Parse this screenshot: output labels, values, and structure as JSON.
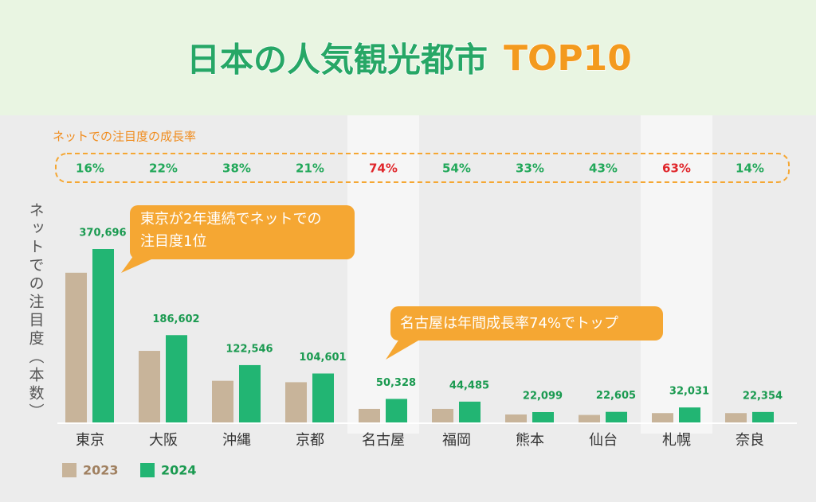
{
  "chart_data": {
    "type": "bar",
    "title": "日本の人気観光都市",
    "title_highlight": "TOP10",
    "y_label": "ネットでの注目度（本数）",
    "categories": [
      "東京",
      "大阪",
      "沖縄",
      "京都",
      "名古屋",
      "福岡",
      "熊本",
      "仙台",
      "札幌",
      "奈良"
    ],
    "series": [
      {
        "name": "2023",
        "color": "#c8b49a",
        "values": [
          320000,
          153000,
          89000,
          86000,
          29000,
          29000,
          17000,
          16000,
          20000,
          20000
        ]
      },
      {
        "name": "2024",
        "color": "#22b573",
        "values": [
          370696,
          186602,
          122546,
          104601,
          50328,
          44485,
          22099,
          22605,
          32031,
          22354
        ],
        "value_labels": [
          "370,696",
          "186,602",
          "122,546",
          "104,601",
          "50,328",
          "44,485",
          "22,099",
          "22,605",
          "32,031",
          "22,354"
        ]
      }
    ],
    "growth": {
      "label": "ネットでの注目度の成長率",
      "values": [
        16,
        22,
        38,
        21,
        74,
        54,
        33,
        43,
        63,
        14
      ],
      "value_labels": [
        "16%",
        "22%",
        "38%",
        "21%",
        "74%",
        "54%",
        "33%",
        "43%",
        "63%",
        "14%"
      ],
      "color": "#22a85a",
      "highlight_color": "#e0262b",
      "highlighted": [
        false,
        false,
        false,
        false,
        true,
        false,
        false,
        false,
        true,
        false
      ]
    },
    "annotations": [
      {
        "lines": [
          "東京が2年連続でネットでの",
          "注目度1位"
        ]
      },
      {
        "lines": [
          "名古屋は年間成長率74%でトップ"
        ]
      }
    ]
  }
}
